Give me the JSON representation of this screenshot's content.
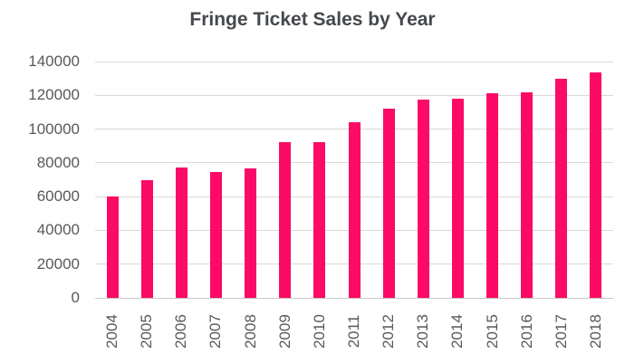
{
  "chart_data": {
    "type": "bar",
    "title": "Fringe Ticket Sales by Year",
    "categories": [
      "2004",
      "2005",
      "2006",
      "2007",
      "2008",
      "2009",
      "2010",
      "2011",
      "2012",
      "2013",
      "2014",
      "2015",
      "2016",
      "2017",
      "2018"
    ],
    "values": [
      60000,
      70000,
      77000,
      74500,
      76500,
      92500,
      92500,
      104000,
      112000,
      117500,
      118000,
      121500,
      122000,
      130000,
      133500
    ],
    "xlabel": "",
    "ylabel": "",
    "ylim": [
      0,
      140000
    ],
    "ytick_interval": 20000,
    "ytick_labels": [
      "0",
      "20000",
      "40000",
      "60000",
      "80000",
      "100000",
      "120000",
      "140000"
    ],
    "grid": true,
    "legend": false,
    "colors": {
      "bar": "#fb0a66",
      "title": "#45484d",
      "axis_labels": "#595959",
      "gridline": "#d9d9d9",
      "baseline": "#c9c9c9",
      "background": "#ffffff"
    }
  }
}
